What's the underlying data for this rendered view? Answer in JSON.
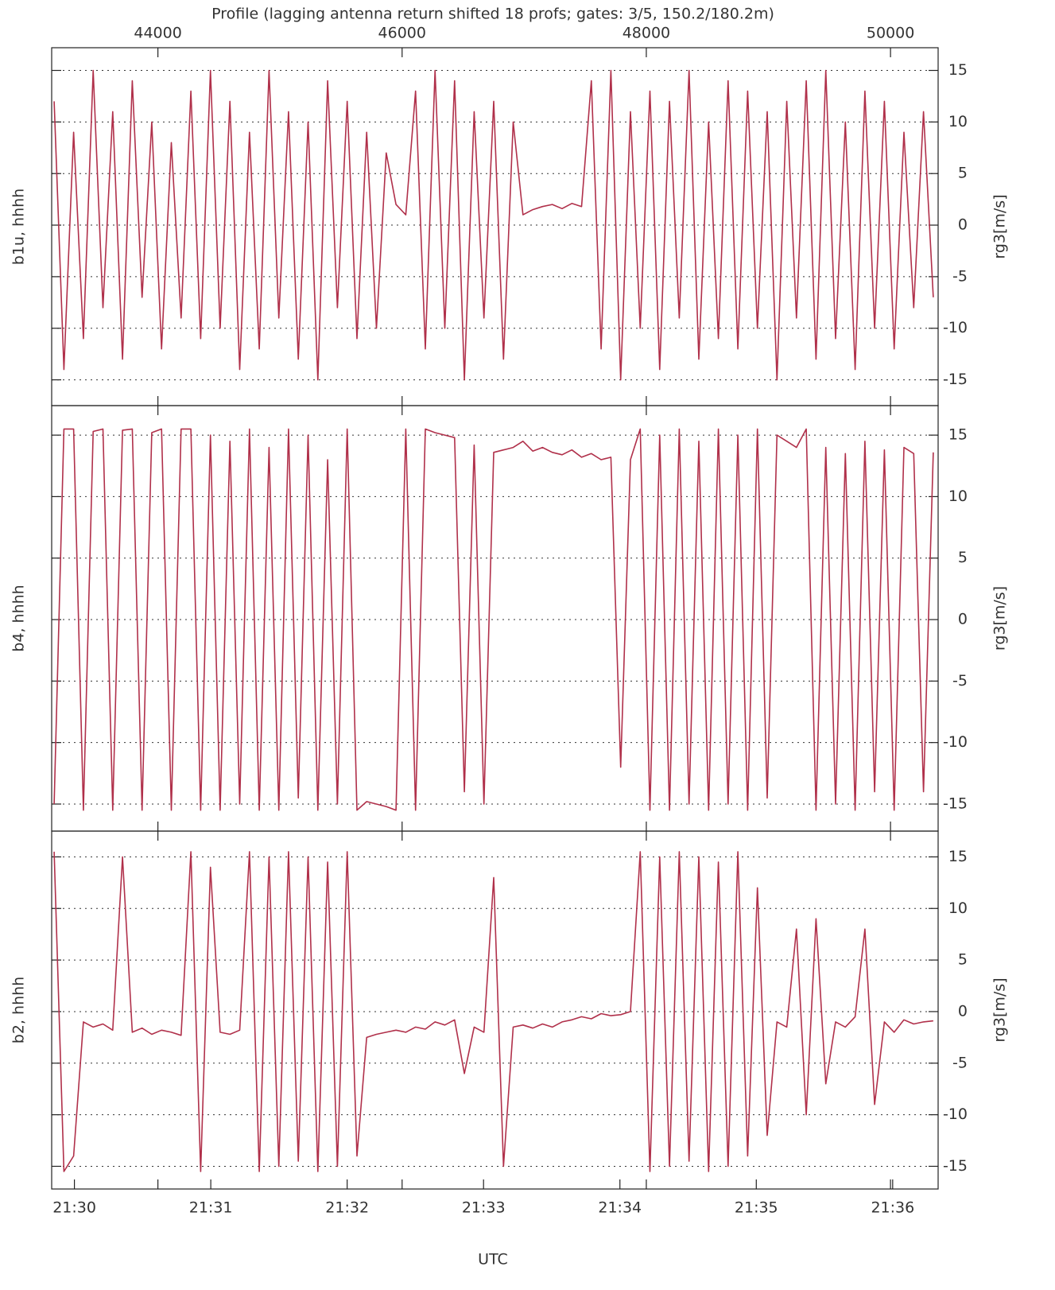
{
  "chart_data": [
    {
      "type": "line",
      "title": "Profile (lagging antenna return shifted 18 profs; gates: 3/5, 150.2/180.2m)",
      "ylabel": "b1u, hhhh",
      "ylabel_right": "rg3[m/s]",
      "color": "#b0304a",
      "grid": true,
      "xlim": [
        43130,
        50390
      ],
      "xticks": [
        44000,
        46000,
        48000,
        50000
      ],
      "ylim": [
        -17.5,
        17.2
      ],
      "yticks": [
        -15,
        -10,
        -5,
        0,
        5,
        10,
        15
      ],
      "x": [
        43150,
        43230,
        43310,
        43390,
        43470,
        43550,
        43630,
        43710,
        43790,
        43870,
        43950,
        44030,
        44110,
        44190,
        44270,
        44350,
        44430,
        44510,
        44590,
        44670,
        44750,
        44830,
        44910,
        44990,
        45070,
        45150,
        45230,
        45310,
        45390,
        45470,
        45550,
        45630,
        45710,
        45790,
        45870,
        45950,
        46030,
        46110,
        46190,
        46270,
        46350,
        46430,
        46510,
        46590,
        46670,
        46750,
        46830,
        46910,
        46990,
        47070,
        47150,
        47230,
        47310,
        47390,
        47470,
        47550,
        47630,
        47710,
        47790,
        47870,
        47950,
        48030,
        48110,
        48190,
        48270,
        48350,
        48430,
        48510,
        48590,
        48670,
        48750,
        48830,
        48910,
        48990,
        49070,
        49150,
        49230,
        49310,
        49390,
        49470,
        49550,
        49630,
        49710,
        49790,
        49870,
        49950,
        50030,
        50110,
        50190,
        50270,
        50350
      ],
      "values": [
        12,
        -14,
        9,
        -11,
        15,
        -8,
        11,
        -13,
        14,
        -7,
        10,
        -12,
        8,
        -9,
        13,
        -11,
        15,
        -10,
        12,
        -14,
        9,
        -12,
        15,
        -9,
        11,
        -13,
        10,
        -15,
        14,
        -8,
        12,
        -11,
        9,
        -10,
        7,
        2,
        1,
        13,
        -12,
        15,
        -10,
        14,
        -15,
        11,
        -9,
        12,
        -13,
        10,
        1,
        1.5,
        1.8,
        2,
        1.6,
        2.1,
        1.8,
        14,
        -12,
        15,
        -15,
        11,
        -10,
        13,
        -14,
        12,
        -9,
        15,
        -13,
        10,
        -11,
        14,
        -12,
        13,
        -10,
        11,
        -15,
        12,
        -9,
        14,
        -13,
        15,
        -11,
        10,
        -14,
        13,
        -10,
        12,
        -12,
        9,
        -8,
        11,
        -7
      ]
    },
    {
      "type": "line",
      "ylabel": "b4, hhhh",
      "ylabel_right": "rg3[m/s]",
      "color": "#b0304a",
      "grid": true,
      "xlim": [
        43130,
        50390
      ],
      "ylim": [
        -17.2,
        17.4
      ],
      "yticks": [
        -15,
        -10,
        -5,
        0,
        5,
        10,
        15
      ],
      "x": [
        43150,
        43230,
        43310,
        43390,
        43470,
        43550,
        43630,
        43710,
        43790,
        43870,
        43950,
        44030,
        44110,
        44190,
        44270,
        44350,
        44430,
        44510,
        44590,
        44670,
        44750,
        44830,
        44910,
        44990,
        45070,
        45150,
        45230,
        45310,
        45390,
        45470,
        45550,
        45630,
        45710,
        45790,
        45870,
        45950,
        46030,
        46110,
        46190,
        46270,
        46350,
        46430,
        46510,
        46590,
        46670,
        46750,
        46830,
        46910,
        46990,
        47070,
        47150,
        47230,
        47310,
        47390,
        47470,
        47550,
        47630,
        47710,
        47790,
        47870,
        47950,
        48030,
        48110,
        48190,
        48270,
        48350,
        48430,
        48510,
        48590,
        48670,
        48750,
        48830,
        48910,
        48990,
        49070,
        49150,
        49230,
        49310,
        49390,
        49470,
        49550,
        49630,
        49710,
        49790,
        49870,
        49950,
        50030,
        50110,
        50190,
        50270,
        50350
      ],
      "values": [
        -15,
        15.5,
        15.5,
        -15.5,
        15.3,
        15.5,
        -15.5,
        15.4,
        15.5,
        -15.5,
        15.2,
        15.5,
        -15.5,
        15.5,
        15.5,
        -15.5,
        15,
        -15.5,
        14.5,
        -15,
        15.5,
        -15.5,
        14,
        -15.5,
        15.5,
        -14.5,
        15,
        -15.5,
        13,
        -15,
        15.5,
        -15.5,
        -14.8,
        -15,
        -15.2,
        -15.5,
        15.5,
        -15.5,
        15.5,
        15.2,
        15,
        14.8,
        -14,
        14.2,
        -15,
        13.6,
        13.8,
        14,
        14.5,
        13.7,
        14,
        13.6,
        13.4,
        13.8,
        13.2,
        13.5,
        13,
        13.2,
        -12,
        13,
        15.5,
        -15.5,
        15,
        -15.5,
        15.5,
        -15,
        14.5,
        -15.5,
        15.5,
        -15,
        15,
        -15.5,
        15.5,
        -14.5,
        15,
        14.5,
        14,
        15.5,
        -15.5,
        14,
        -15,
        13.5,
        -15.5,
        14.5,
        -14,
        13.8,
        -15.5,
        14,
        13.5,
        -14,
        13.6
      ]
    },
    {
      "type": "line",
      "ylabel": "b2, hhhh",
      "ylabel_right": "rg3[m/s]",
      "xlabel": "UTC",
      "color": "#b0304a",
      "grid": true,
      "xlim": [
        43130,
        50390
      ],
      "ylim": [
        -17.2,
        17.5
      ],
      "yticks": [
        -15,
        -10,
        -5,
        0,
        5,
        10,
        15
      ],
      "x2lim": [
        77390,
        77780
      ],
      "x2ticks": [
        {
          "value": 77400,
          "label": "21:30"
        },
        {
          "value": 77460,
          "label": "21:31"
        },
        {
          "value": 77520,
          "label": "21:32"
        },
        {
          "value": 77580,
          "label": "21:33"
        },
        {
          "value": 77640,
          "label": "21:34"
        },
        {
          "value": 77700,
          "label": "21:35"
        },
        {
          "value": 77760,
          "label": "21:36"
        }
      ],
      "x": [
        43150,
        43230,
        43310,
        43390,
        43470,
        43550,
        43630,
        43710,
        43790,
        43870,
        43950,
        44030,
        44110,
        44190,
        44270,
        44350,
        44430,
        44510,
        44590,
        44670,
        44750,
        44830,
        44910,
        44990,
        45070,
        45150,
        45230,
        45310,
        45390,
        45470,
        45550,
        45630,
        45710,
        45790,
        45870,
        45950,
        46030,
        46110,
        46190,
        46270,
        46350,
        46430,
        46510,
        46590,
        46670,
        46750,
        46830,
        46910,
        46990,
        47070,
        47150,
        47230,
        47310,
        47390,
        47470,
        47550,
        47630,
        47710,
        47790,
        47870,
        47950,
        48030,
        48110,
        48190,
        48270,
        48350,
        48430,
        48510,
        48590,
        48670,
        48750,
        48830,
        48910,
        48990,
        49070,
        49150,
        49230,
        49310,
        49390,
        49470,
        49550,
        49630,
        49710,
        49790,
        49870,
        49950,
        50030,
        50110,
        50190,
        50270,
        50350
      ],
      "values": [
        15.5,
        -15.5,
        -14,
        -1,
        -1.5,
        -1.2,
        -1.8,
        15,
        -2,
        -1.6,
        -2.2,
        -1.8,
        -2,
        -2.3,
        15.5,
        -15.5,
        14,
        -2,
        -2.2,
        -1.8,
        15.5,
        -15.5,
        15,
        -15,
        15.5,
        -14.5,
        15,
        -15.5,
        14.5,
        -15,
        15.5,
        -14,
        -2.5,
        -2.2,
        -2,
        -1.8,
        -2,
        -1.5,
        -1.7,
        -1,
        -1.3,
        -0.8,
        -6,
        -1.5,
        -2,
        13,
        -15,
        -1.5,
        -1.3,
        -1.6,
        -1.2,
        -1.5,
        -1,
        -0.8,
        -0.5,
        -0.7,
        -0.2,
        -0.4,
        -0.3,
        0,
        15.5,
        -15.5,
        15,
        -15,
        15.5,
        -14.5,
        15,
        -15.5,
        14.5,
        -15,
        15.5,
        -14,
        12,
        -12,
        -1,
        -1.5,
        8,
        -10,
        9,
        -7,
        -1,
        -1.5,
        -0.5,
        8,
        -9,
        -1,
        -2,
        -0.8,
        -1.2,
        -1,
        -0.9
      ]
    }
  ]
}
